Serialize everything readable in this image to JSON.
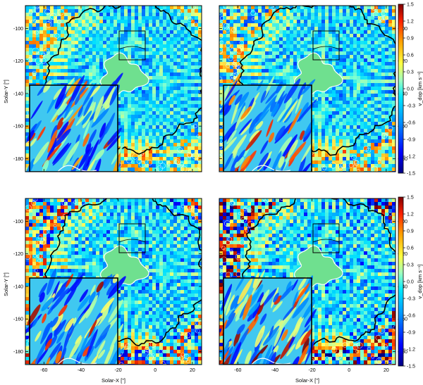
{
  "figure": {
    "x_axis_label": "Solar-X [\"]",
    "y_axis_label": "Solar-Y [\"]",
    "colorbar_label": "v_dop [km s⁻¹]",
    "x_ticks": [
      "-60",
      "-40",
      "-20",
      "0",
      "20"
    ],
    "y_ticks": [
      "-100",
      "-120",
      "-140",
      "-160",
      "-180"
    ],
    "colorbar_ticks": [
      "1.5",
      "1.2",
      "0.9",
      "0.6",
      "0.3",
      "0.0",
      "-0.3",
      "-0.6",
      "-0.9",
      "-1.2",
      "-1.5"
    ],
    "x_range": [
      -70,
      25
    ],
    "y_range": [
      -188,
      -86
    ],
    "colorbar_range": [
      -1.5,
      1.5
    ]
  },
  "colors": {
    "umbra": "#6fe08f",
    "inset_frame": "#000000",
    "colormap": [
      "#00007f",
      "#0000ff",
      "#0080ff",
      "#00e0ff",
      "#7fffd0",
      "#ffff66",
      "#ffa000",
      "#ff3000",
      "#7f0000"
    ]
  },
  "panels": [
    {
      "id": "top-left",
      "noise": 0.55
    },
    {
      "id": "top-right",
      "noise": 0.6
    },
    {
      "id": "bottom-left",
      "noise": 0.8
    },
    {
      "id": "bottom-right",
      "noise": 1.0
    }
  ]
}
